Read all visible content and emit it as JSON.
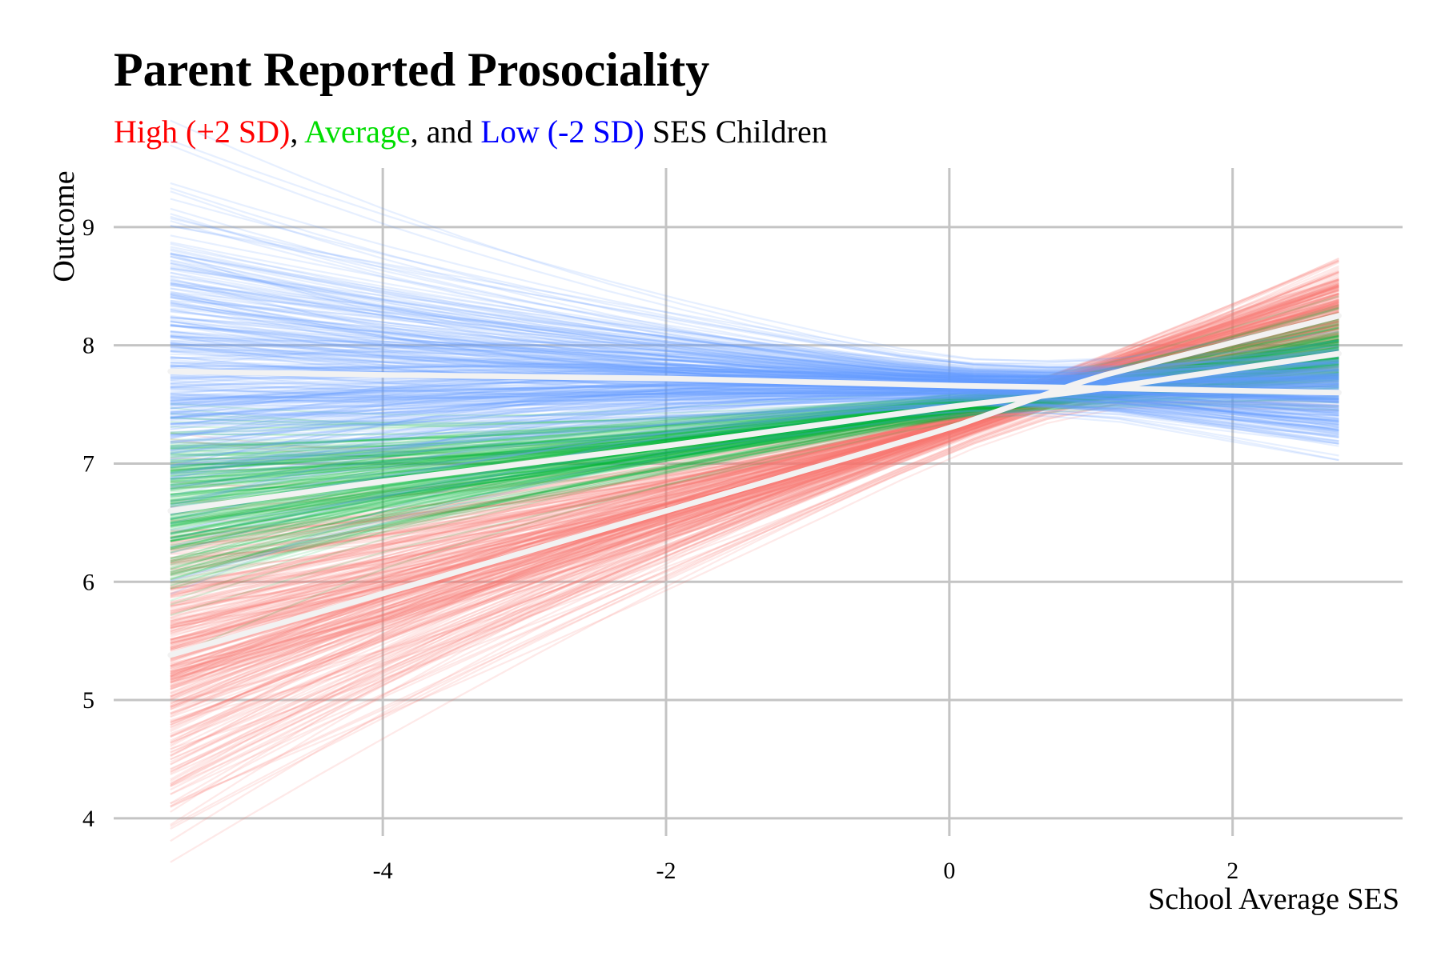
{
  "chart_data": {
    "type": "line",
    "title": "Parent Reported Prosociality",
    "subtitle_parts": [
      {
        "text": "High (+2 SD)",
        "color": "#ff0000"
      },
      {
        "text": ", ",
        "color": "#000000"
      },
      {
        "text": "Average",
        "color": "#00dd00"
      },
      {
        "text": ", and ",
        "color": "#000000"
      },
      {
        "text": "Low (-2 SD)",
        "color": "#0000ff"
      },
      {
        "text": " SES Children",
        "color": "#000000"
      }
    ],
    "xlabel": "School Average SES",
    "ylabel": "Outcome",
    "xlim": [
      -5.9,
      3.2
    ],
    "ylim": [
      3.85,
      9.5
    ],
    "x_ticks": [
      -4,
      -2,
      0,
      2
    ],
    "x_tick_labels": [
      "-4",
      "-2",
      "0",
      "2"
    ],
    "y_ticks": [
      4,
      5,
      6,
      7,
      8,
      9
    ],
    "y_tick_labels": [
      "4",
      "5",
      "6",
      "7",
      "8",
      "9"
    ],
    "x_range_of_lines": [
      -5.5,
      2.75
    ],
    "grid": true,
    "series": [
      {
        "name": "High (+2 SD)",
        "color": "#f8766d",
        "mean_line_color": "#f2f2f2",
        "mean_points": [
          [
            -5.5,
            5.38
          ],
          [
            -4.0,
            5.9
          ],
          [
            -2.0,
            6.6
          ],
          [
            0.0,
            7.3
          ],
          [
            1.0,
            7.72
          ],
          [
            2.75,
            8.25
          ]
        ],
        "spread_points": [
          [
            -5.5,
            0.65
          ],
          [
            -4.0,
            0.5
          ],
          [
            -2.0,
            0.3
          ],
          [
            0.0,
            0.1
          ],
          [
            1.0,
            0.1
          ],
          [
            2.75,
            0.3
          ]
        ],
        "n_draws": 320,
        "draw_opacity": 0.16
      },
      {
        "name": "Average",
        "color": "#00ba38",
        "mean_line_color": "#f2f2f2",
        "mean_points": [
          [
            -5.5,
            6.6
          ],
          [
            -4.0,
            6.85
          ],
          [
            -2.0,
            7.15
          ],
          [
            0.0,
            7.48
          ],
          [
            1.0,
            7.62
          ],
          [
            2.75,
            7.93
          ]
        ],
        "spread_points": [
          [
            -5.5,
            0.35
          ],
          [
            -4.0,
            0.25
          ],
          [
            -2.0,
            0.15
          ],
          [
            0.0,
            0.06
          ],
          [
            1.0,
            0.08
          ],
          [
            2.75,
            0.2
          ]
        ],
        "n_draws": 260,
        "draw_opacity": 0.14
      },
      {
        "name": "Low (-2 SD)",
        "color": "#619cff",
        "mean_line_color": "#f2f2f2",
        "mean_points": [
          [
            -5.5,
            7.78
          ],
          [
            -4.0,
            7.75
          ],
          [
            -2.0,
            7.72
          ],
          [
            0.0,
            7.66
          ],
          [
            1.0,
            7.64
          ],
          [
            2.75,
            7.6
          ]
        ],
        "spread_points": [
          [
            -5.5,
            0.65
          ],
          [
            -4.0,
            0.5
          ],
          [
            -2.0,
            0.3
          ],
          [
            0.0,
            0.12
          ],
          [
            1.0,
            0.12
          ],
          [
            2.75,
            0.28
          ]
        ],
        "n_draws": 320,
        "draw_opacity": 0.16
      }
    ]
  }
}
